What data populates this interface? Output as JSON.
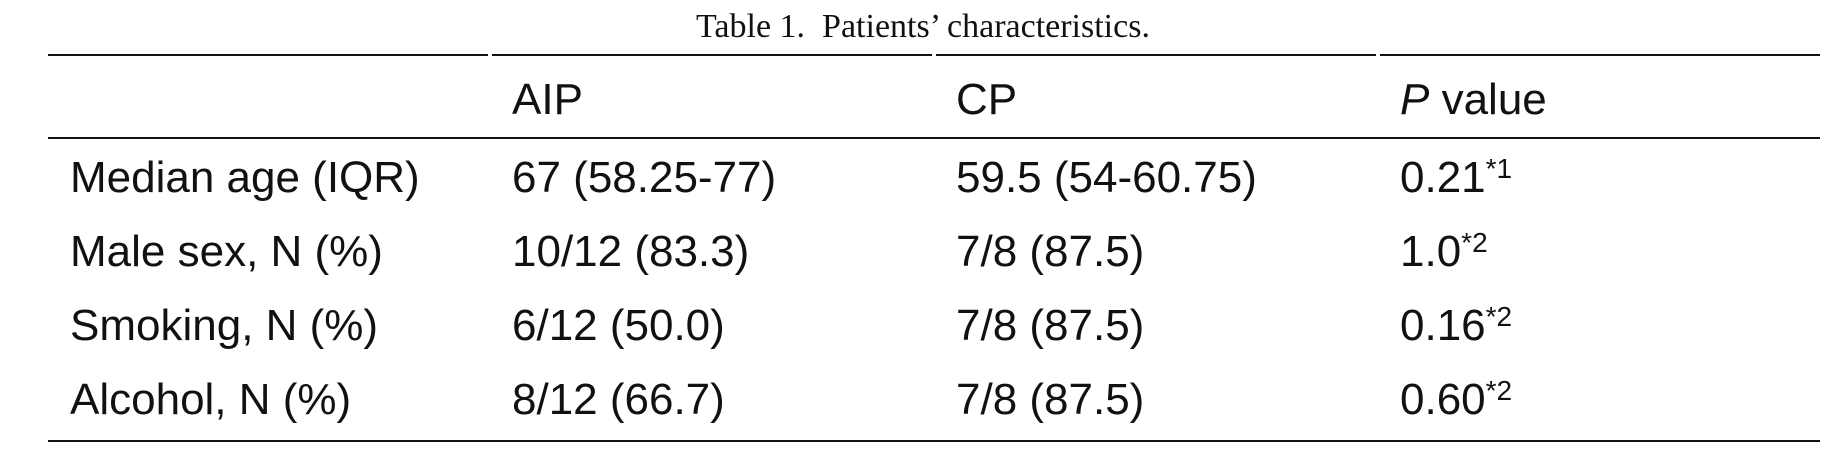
{
  "table": {
    "caption": "Table 1.  Patients’ characteristics.",
    "header": {
      "col1": "AIP",
      "col2": "CP",
      "col3_italic": "P",
      "col3_rest": " value"
    },
    "rows": [
      {
        "label": "Median age (IQR)",
        "aip": "67 (58.25-77)",
        "cp": "59.5 (54-60.75)",
        "p": "0.21",
        "p_note": "*1"
      },
      {
        "label": "Male sex, N (%)",
        "aip": "10/12 (83.3)",
        "cp": "7/8 (87.5)",
        "p": "1.0",
        "p_note": "*2"
      },
      {
        "label": "Smoking, N (%)",
        "aip": "6/12 (50.0)",
        "cp": "7/8 (87.5)",
        "p": "0.16",
        "p_note": "*2"
      },
      {
        "label": "Alcohol, N (%)",
        "aip": "8/12 (66.7)",
        "cp": "7/8 (87.5)",
        "p": "0.60",
        "p_note": "*2"
      }
    ]
  }
}
